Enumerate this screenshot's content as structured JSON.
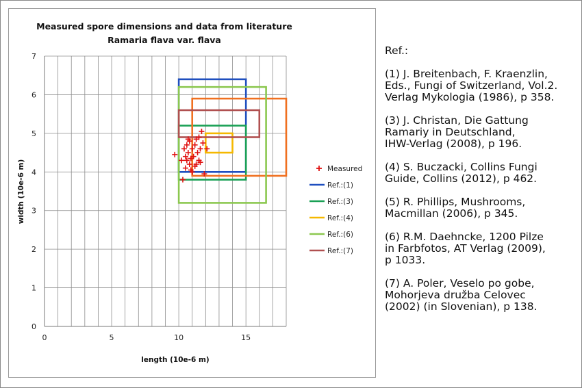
{
  "chart_data": {
    "type": "scatter",
    "title": "Measured spore dimensions and data from literature",
    "subtitle": "Ramaria flava var. flava",
    "xlabel": "length (10e-6 m)",
    "ylabel": "width (10e-6 m)",
    "xlim": [
      0,
      18
    ],
    "ylim": [
      0,
      7
    ],
    "xticks": [
      0,
      5,
      10,
      15
    ],
    "yticks": [
      0,
      1,
      2,
      3,
      4,
      5,
      6,
      7
    ],
    "grid": true,
    "legend_position": "right",
    "measured": {
      "name": "Measured",
      "color": "#e01010",
      "points": [
        [
          9.7,
          4.45
        ],
        [
          10.2,
          4.3
        ],
        [
          10.3,
          3.8
        ],
        [
          10.4,
          4.6
        ],
        [
          10.5,
          4.4
        ],
        [
          10.5,
          4.1
        ],
        [
          10.6,
          4.7
        ],
        [
          10.7,
          4.5
        ],
        [
          10.8,
          4.2
        ],
        [
          10.8,
          4.8
        ],
        [
          10.9,
          4.35
        ],
        [
          11.0,
          4.6
        ],
        [
          11.0,
          4.0
        ],
        [
          11.1,
          4.4
        ],
        [
          11.2,
          4.7
        ],
        [
          11.3,
          4.2
        ],
        [
          11.4,
          4.5
        ],
        [
          11.5,
          4.3
        ],
        [
          11.5,
          4.9
        ],
        [
          11.6,
          4.6
        ],
        [
          11.7,
          5.05
        ],
        [
          11.8,
          4.75
        ],
        [
          11.9,
          3.95
        ],
        [
          12.1,
          4.6
        ],
        [
          10.6,
          4.3
        ],
        [
          10.9,
          4.05
        ],
        [
          11.2,
          4.15
        ],
        [
          11.6,
          4.25
        ],
        [
          10.7,
          4.85
        ],
        [
          11.3,
          4.85
        ]
      ]
    },
    "references": [
      {
        "name": "Ref.:(1)",
        "color": "#1f4fbf",
        "x": [
          10,
          15
        ],
        "y": [
          4,
          6.4
        ]
      },
      {
        "name": "Ref.:(3)",
        "color": "#1aa055",
        "x": [
          10,
          15
        ],
        "y": [
          3.8,
          5.2
        ]
      },
      {
        "name": "Ref.:(4)",
        "color": "#f5b800",
        "x": [
          12,
          14
        ],
        "y": [
          4.5,
          5
        ]
      },
      {
        "name": "Ref.:(5)",
        "color": "#f07020",
        "x": [
          11,
          18
        ],
        "y": [
          3.9,
          5.9
        ]
      },
      {
        "name": "Ref.:(6)",
        "color": "#8cc850",
        "x": [
          10,
          16.5
        ],
        "y": [
          3.2,
          6.2
        ]
      },
      {
        "name": "Ref.:(7)",
        "color": "#b05050",
        "x": [
          10,
          16
        ],
        "y": [
          4.9,
          5.6
        ]
      }
    ],
    "legend_entries": [
      "Measured",
      "Ref.:(1)",
      "Ref.:(3)",
      "Ref.:(4)",
      "Ref.:(6)",
      "Ref.:(7)"
    ]
  },
  "references_panel": {
    "heading": "Ref.:",
    "items": [
      [
        "(1) J. Breitenbach, F. Kraenzlin,",
        "Eds., Fungi of Switzerland, Vol.2.",
        "Verlag Mykologia (1986), p 358."
      ],
      [
        "(3) J. Christan, Die Gattung",
        "Ramariy in Deutschland,",
        "IHW-Verlag (2008), p 196."
      ],
      [
        "(4) S. Buczacki, Collins Fungi",
        "Guide, Collins (2012), p 462."
      ],
      [
        "(5) R. Phillips, Mushrooms,",
        "Macmillan (2006), p 345."
      ],
      [
        "(6) R.M. Daehncke, 1200 Pilze",
        "in Farbfotos, AT Verlag (2009),",
        "p 1033."
      ],
      [
        "(7) A. Poler, Veselo po gobe,",
        "Mohorjeva družba Celovec",
        "(2002) (in Slovenian), p 138."
      ]
    ]
  }
}
